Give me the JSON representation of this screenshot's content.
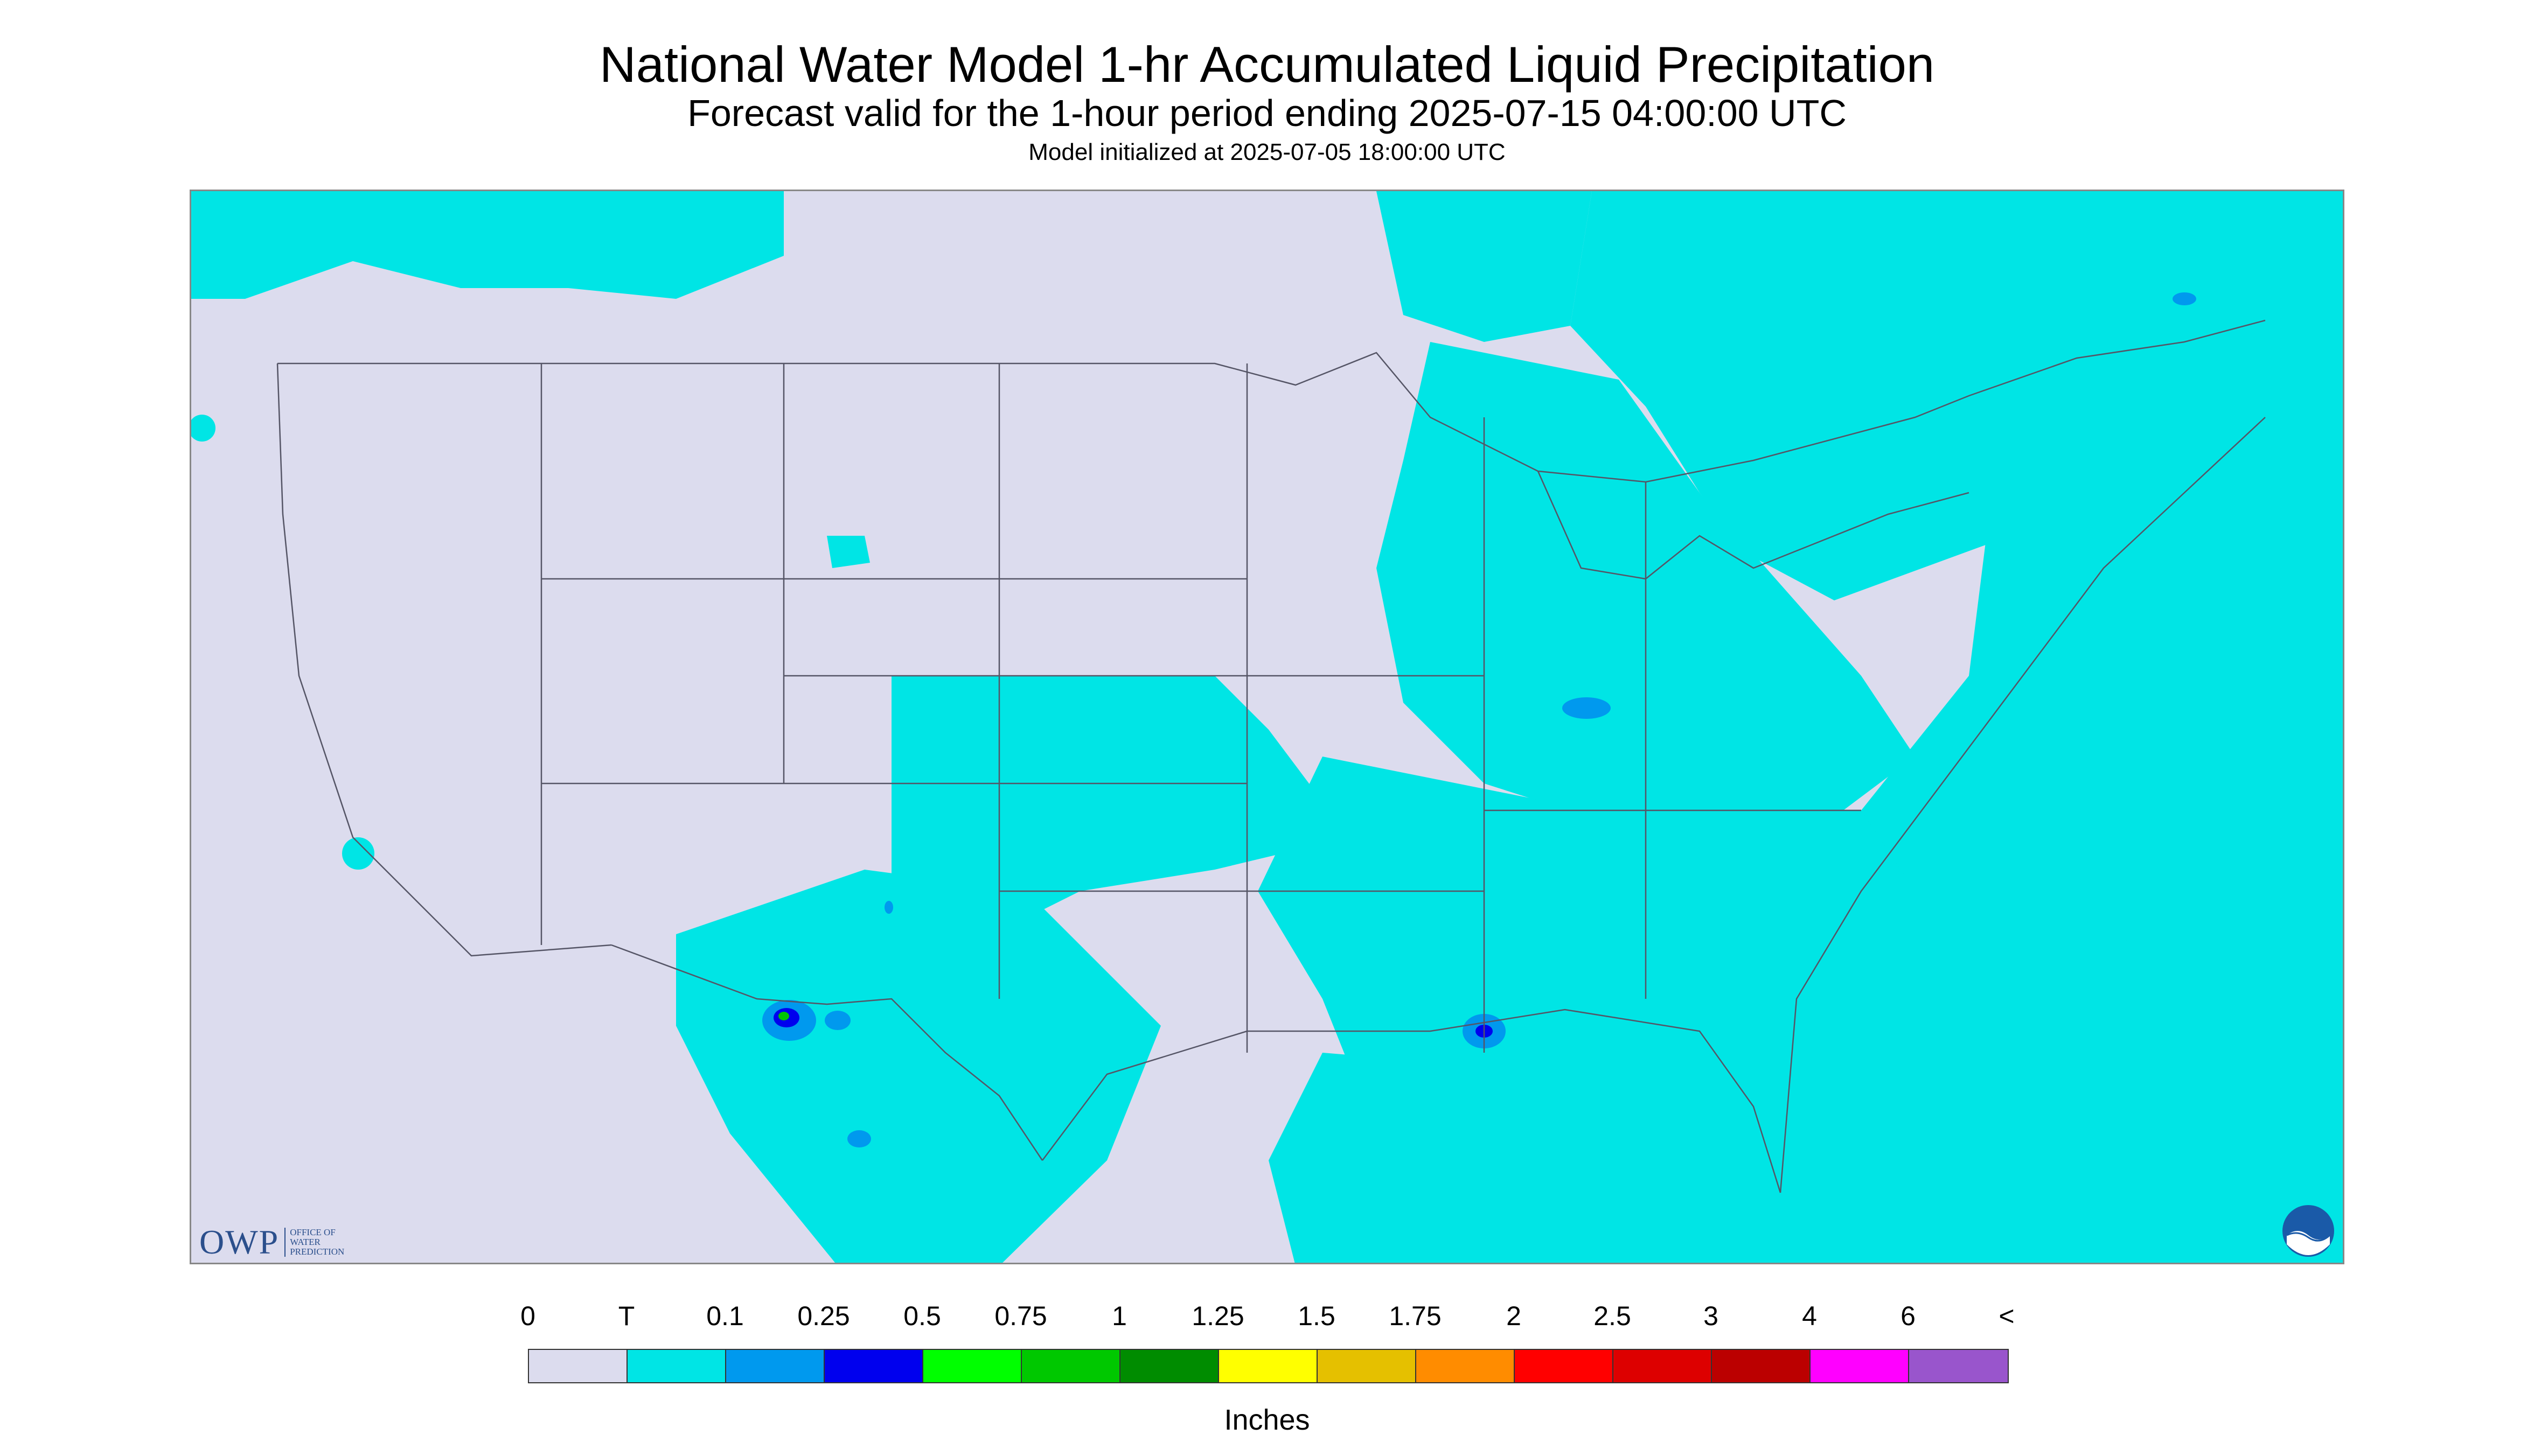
{
  "header": {
    "title": "National Water Model 1-hr Accumulated Liquid Precipitation",
    "subtitle": "Forecast valid for the 1-hour period ending 2025-07-15 04:00:00 UTC",
    "init": "Model initialized at 2025-07-05 18:00:00 UTC"
  },
  "logos": {
    "owp_text": "OWP",
    "owp_subtext_1": "Office of",
    "owp_subtext_2": "Water",
    "owp_subtext_3": "Prediction",
    "noaa_text": "NOAA"
  },
  "legend": {
    "labels": [
      "0",
      "T",
      "0.1",
      "0.25",
      "0.5",
      "0.75",
      "1",
      "1.25",
      "1.5",
      "1.75",
      "2",
      "2.5",
      "3",
      "4",
      "6",
      "<"
    ],
    "colors": [
      "#dcdcee",
      "#00e5e5",
      "#0099ee",
      "#0000ee",
      "#00ff00",
      "#00c800",
      "#008c00",
      "#ffff00",
      "#e5c000",
      "#ff8c00",
      "#ff0000",
      "#dd0000",
      "#bb0000",
      "#ff00ff",
      "#9955cc"
    ],
    "unit": "Inches"
  },
  "colors": {
    "no_precip": "#dcdcee",
    "trace": "#00e5e5",
    "boundary": "#555566"
  }
}
